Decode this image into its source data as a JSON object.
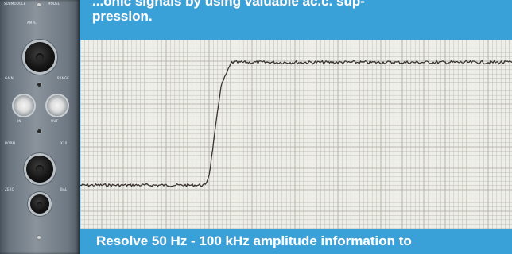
{
  "caption": {
    "top_line1": "...onic signals by using valuable ac.c. sup-",
    "top_line2": "pression.",
    "bottom_line": "Resolve 50 Hz - 100 kHz amplitude information to"
  },
  "panel": {
    "labels": [
      "SUBMODULE",
      "MODEL",
      "AMPL",
      "GAIN",
      "RANGE",
      "IN",
      "OUT",
      "NORM",
      "X10",
      "ZERO",
      "BAL"
    ]
  },
  "trace": {
    "low_level_fraction": 0.23,
    "high_level_fraction": 0.88,
    "step_start_fraction": 0.29,
    "step_end_fraction": 0.35
  },
  "colors": {
    "background": "#3aa0d8",
    "paper": "#efefe9",
    "grid": "#b9b9b0",
    "trace": "#3a3430"
  }
}
